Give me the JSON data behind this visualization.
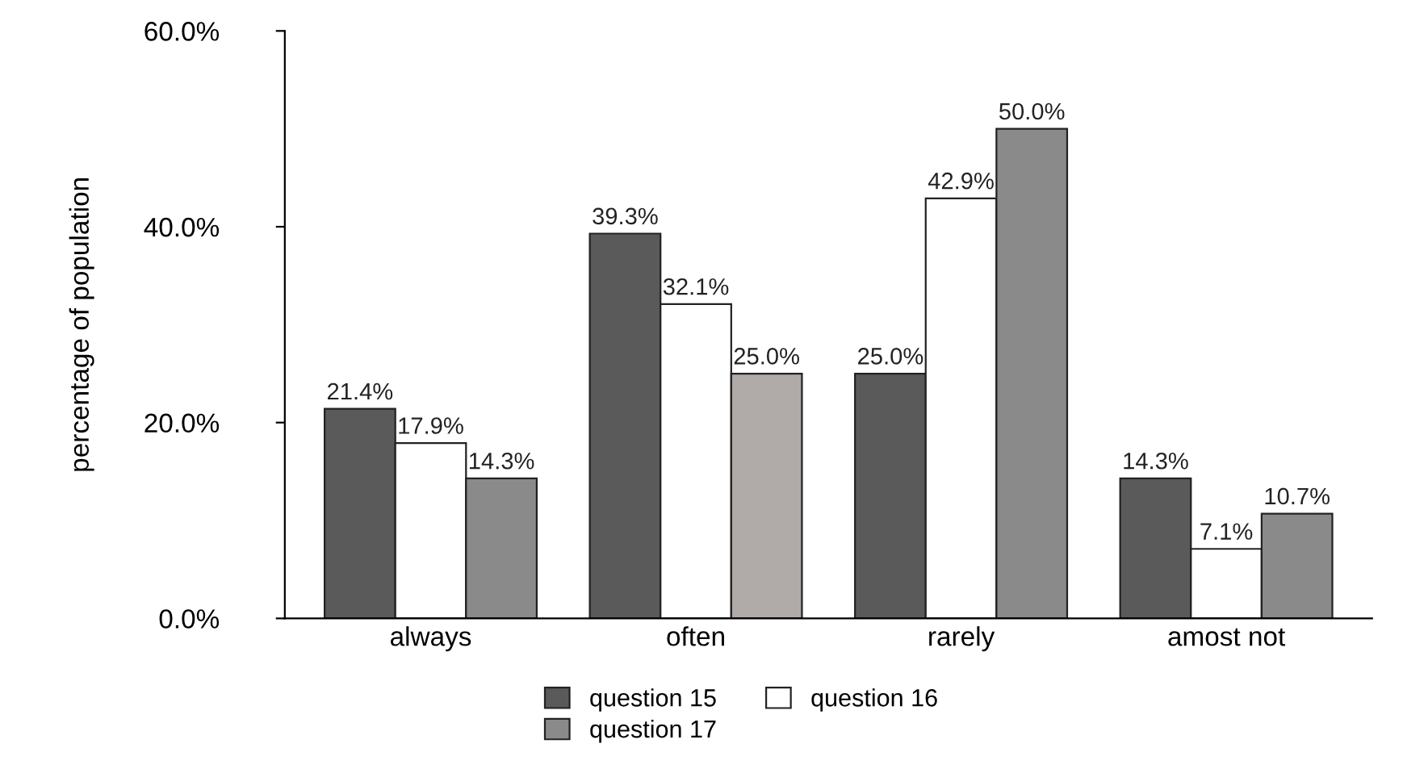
{
  "chart_data": {
    "type": "bar",
    "ylabel": "percentage of population",
    "categories": [
      "always",
      "often",
      "rarely",
      "amost not"
    ],
    "series": [
      {
        "name": "question 15",
        "color": "#5a5a5a",
        "values": [
          21.4,
          39.3,
          25.0,
          14.3
        ],
        "value_labels": [
          "21.4%",
          "39.3%",
          "25.0%",
          "14.3%"
        ]
      },
      {
        "name": "question 16",
        "color": "#ffffff",
        "values": [
          17.9,
          32.1,
          42.9,
          7.1
        ],
        "value_labels": [
          "17.9%",
          "32.1%",
          "42.9%",
          "7.1%"
        ]
      },
      {
        "name": "question 17",
        "color": "#8a8a8a",
        "colors": [
          "#8a8a8a",
          "#b0aaa8",
          "#8a8a8a",
          "#8a8a8a"
        ],
        "values": [
          14.3,
          25.0,
          50.0,
          10.7
        ],
        "value_labels": [
          "14.3%",
          "25.0%",
          "50.0%",
          "10.7%"
        ]
      }
    ],
    "ylim": [
      0,
      60
    ],
    "yticks": [
      {
        "value": 0,
        "label": "0.0%"
      },
      {
        "value": 20,
        "label": "20.0%"
      },
      {
        "value": 40,
        "label": "40.0%"
      },
      {
        "value": 60,
        "label": "60.0%"
      }
    ],
    "grid": false,
    "legend": "bottom"
  }
}
